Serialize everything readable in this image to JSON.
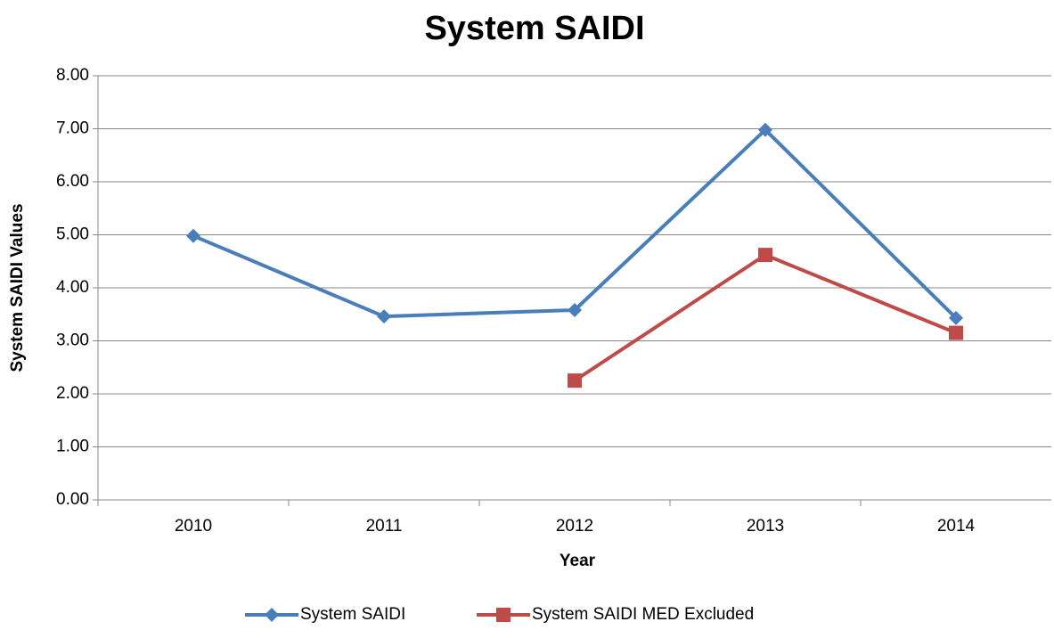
{
  "chart_data": {
    "type": "line",
    "title": "System SAIDI",
    "x_label": "Year",
    "y_label": "System SAIDI Values",
    "categories": [
      "2010",
      "2011",
      "2012",
      "2013",
      "2014"
    ],
    "series": [
      {
        "name": "System SAIDI",
        "color": "#4a7ebb",
        "marker": "diamond",
        "values": [
          4.98,
          3.46,
          3.58,
          6.98,
          3.43
        ]
      },
      {
        "name": "System SAIDI MED Excluded",
        "color": "#be4b48",
        "marker": "square",
        "values": [
          null,
          null,
          2.25,
          4.62,
          3.15
        ]
      }
    ],
    "ylim": [
      0,
      8
    ],
    "yticks": [
      {
        "value": 0,
        "label": "0.00"
      },
      {
        "value": 1,
        "label": "1.00"
      },
      {
        "value": 2,
        "label": "2.00"
      },
      {
        "value": 3,
        "label": "3.00"
      },
      {
        "value": 4,
        "label": "4.00"
      },
      {
        "value": 5,
        "label": "5.00"
      },
      {
        "value": 6,
        "label": "6.00"
      },
      {
        "value": 7,
        "label": "7.00"
      },
      {
        "value": 8,
        "label": "8.00"
      }
    ],
    "grid": true,
    "legend": "bottom"
  }
}
